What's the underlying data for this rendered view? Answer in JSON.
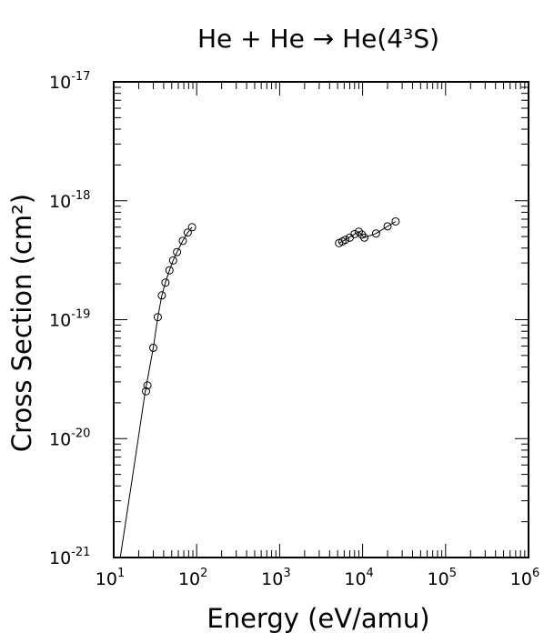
{
  "chart_data": {
    "type": "scatter",
    "title": "He + He → He(4³S)",
    "xlabel": "Energy (eV/amu)",
    "ylabel": "Cross Section (cm²)",
    "x_scale": "log",
    "y_scale": "log",
    "xlim": [
      10,
      1000000
    ],
    "ylim": [
      1e-21,
      1e-17
    ],
    "x_ticks": [
      {
        "base": "10",
        "exp": "1"
      },
      {
        "base": "10",
        "exp": "2"
      },
      {
        "base": "10",
        "exp": "3"
      },
      {
        "base": "10",
        "exp": "4"
      },
      {
        "base": "10",
        "exp": "5"
      },
      {
        "base": "10",
        "exp": "6"
      }
    ],
    "y_ticks": [
      {
        "base": "10",
        "exp": "-21"
      },
      {
        "base": "10",
        "exp": "-20"
      },
      {
        "base": "10",
        "exp": "-19"
      },
      {
        "base": "10",
        "exp": "-18"
      },
      {
        "base": "10",
        "exp": "-17"
      }
    ],
    "grid": false,
    "series": [
      {
        "style": "markers",
        "marker": "open-circle",
        "points": [
          [
            24.5,
            2.5e-20
          ],
          [
            25.5,
            2.8e-20
          ],
          [
            30,
            5.8e-20
          ],
          [
            34,
            1.05e-19
          ],
          [
            38,
            1.6e-19
          ],
          [
            42,
            2.05e-19
          ],
          [
            47,
            2.6e-19
          ],
          [
            52,
            3.15e-19
          ],
          [
            58,
            3.7e-19
          ],
          [
            68,
            4.6e-19
          ],
          [
            78,
            5.4e-19
          ],
          [
            88,
            6e-19
          ],
          [
            5200,
            4.4e-19
          ],
          [
            5700,
            4.55e-19
          ],
          [
            6200,
            4.7e-19
          ],
          [
            7000,
            4.9e-19
          ],
          [
            8000,
            5.25e-19
          ],
          [
            9000,
            5.5e-19
          ],
          [
            9800,
            5.2e-19
          ],
          [
            10500,
            4.9e-19
          ],
          [
            14500,
            5.3e-19
          ],
          [
            20000,
            6.1e-19
          ],
          [
            25000,
            6.7e-19
          ]
        ]
      },
      {
        "style": "line",
        "points": [
          [
            12,
            1e-21
          ],
          [
            18,
            6.5e-21
          ],
          [
            24,
            2.5e-20
          ],
          [
            30,
            5.8e-20
          ],
          [
            34,
            1.05e-19
          ],
          [
            38,
            1.6e-19
          ],
          [
            42,
            2.05e-19
          ],
          [
            47,
            2.6e-19
          ],
          [
            52,
            3.15e-19
          ],
          [
            58,
            3.7e-19
          ],
          [
            68,
            4.6e-19
          ],
          [
            78,
            5.4e-19
          ],
          [
            88,
            6e-19
          ]
        ]
      },
      {
        "style": "line",
        "points": [
          [
            5200,
            4.4e-19
          ],
          [
            6200,
            4.7e-19
          ],
          [
            8000,
            5.25e-19
          ],
          [
            9000,
            5.5e-19
          ],
          [
            10500,
            4.9e-19
          ],
          [
            14500,
            5.3e-19
          ],
          [
            20000,
            6.1e-19
          ],
          [
            25000,
            6.7e-19
          ]
        ]
      }
    ]
  }
}
